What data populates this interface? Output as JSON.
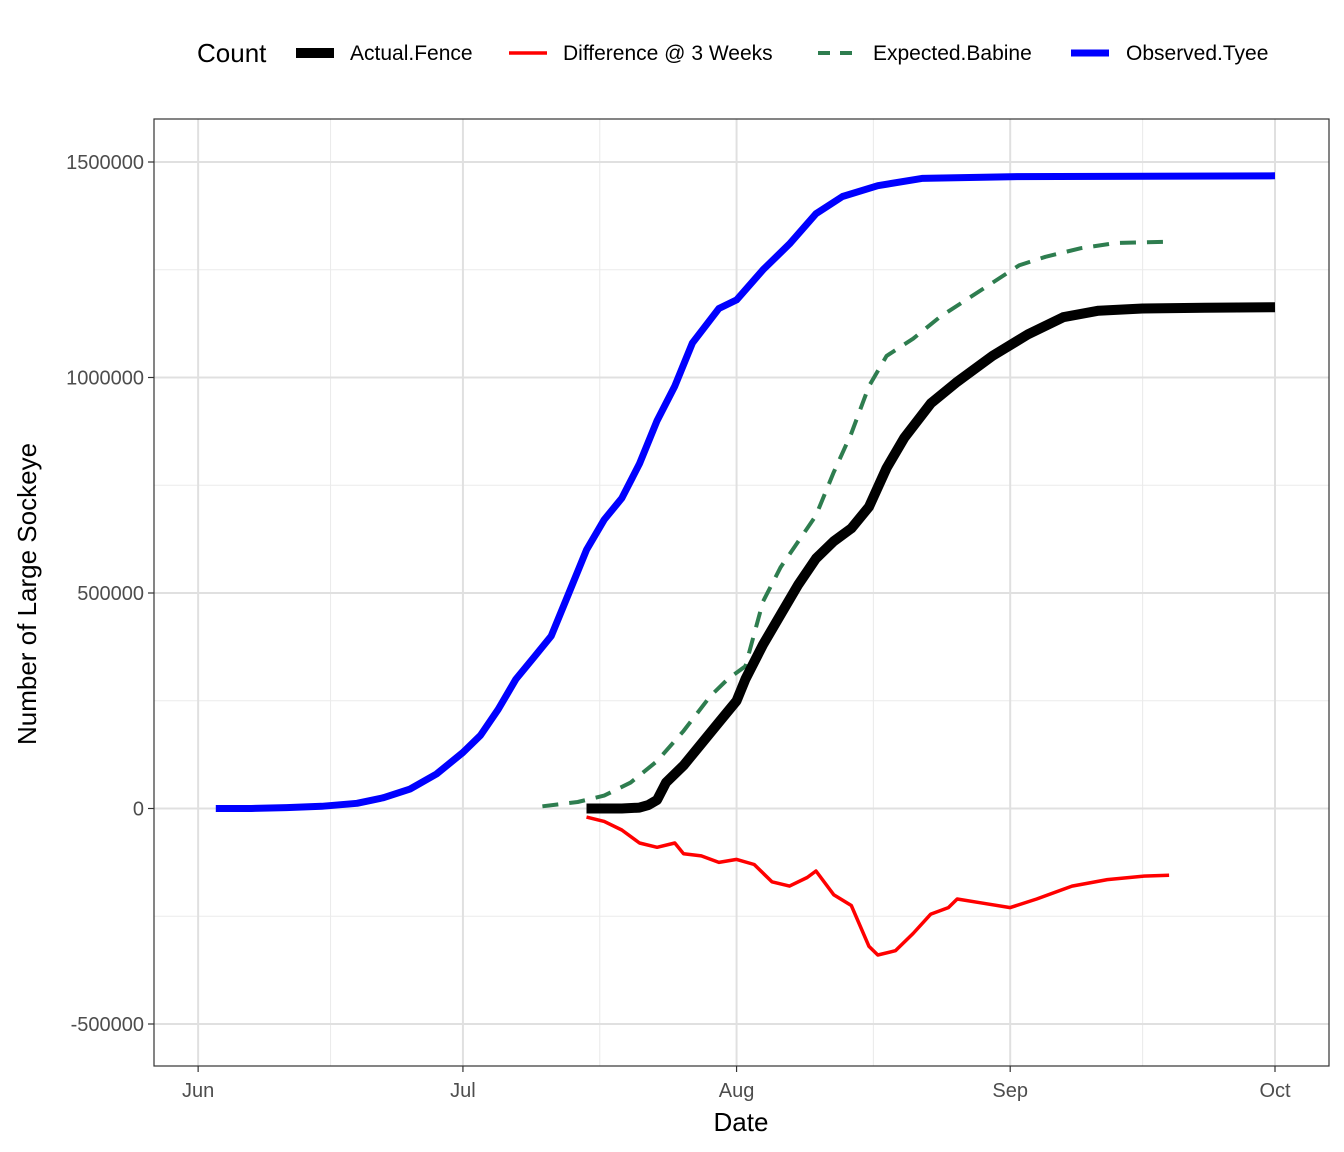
{
  "chart_data": {
    "type": "line",
    "xlabel": "Date",
    "ylabel": "Number of Large Sockeye",
    "legend_title": "Count",
    "legend_position": "top",
    "grid": true,
    "ylim": [
      -500000,
      1500000
    ],
    "y_ticks": [
      -500000,
      0,
      500000,
      1000000,
      1500000
    ],
    "y_tick_labels": [
      "-500000",
      "0",
      "500000",
      "1000000",
      "1500000"
    ],
    "x_ticks": [
      "2000-06-01",
      "2000-07-01",
      "2000-08-01",
      "2000-09-01",
      "2000-10-01"
    ],
    "x_tick_labels": [
      "Jun",
      "Jul",
      "Aug",
      "Sep",
      "Oct"
    ],
    "xlim": [
      "2000-05-27",
      "2000-10-01"
    ],
    "series": [
      {
        "name": "Actual.Fence",
        "color": "#000000",
        "style": "solid",
        "points": [
          [
            "2000-07-15",
            0
          ],
          [
            "2000-07-17",
            0
          ],
          [
            "2000-07-19",
            0
          ],
          [
            "2000-07-21",
            2000
          ],
          [
            "2000-07-22",
            8000
          ],
          [
            "2000-07-23",
            20000
          ],
          [
            "2000-07-24",
            60000
          ],
          [
            "2000-07-26",
            100000
          ],
          [
            "2000-07-28",
            150000
          ],
          [
            "2000-07-30",
            200000
          ],
          [
            "2000-08-01",
            250000
          ],
          [
            "2000-08-02",
            300000
          ],
          [
            "2000-08-04",
            380000
          ],
          [
            "2000-08-06",
            450000
          ],
          [
            "2000-08-08",
            520000
          ],
          [
            "2000-08-10",
            580000
          ],
          [
            "2000-08-12",
            620000
          ],
          [
            "2000-08-14",
            650000
          ],
          [
            "2000-08-16",
            700000
          ],
          [
            "2000-08-18",
            790000
          ],
          [
            "2000-08-20",
            860000
          ],
          [
            "2000-08-23",
            940000
          ],
          [
            "2000-08-26",
            990000
          ],
          [
            "2000-08-30",
            1050000
          ],
          [
            "2000-09-03",
            1100000
          ],
          [
            "2000-09-07",
            1140000
          ],
          [
            "2000-09-11",
            1155000
          ],
          [
            "2000-09-16",
            1160000
          ],
          [
            "2000-09-23",
            1162000
          ],
          [
            "2000-10-01",
            1163000
          ]
        ]
      },
      {
        "name": "Difference @ 3 Weeks",
        "color": "#ff0000",
        "style": "solid",
        "points": [
          [
            "2000-07-15",
            -20000
          ],
          [
            "2000-07-17",
            -30000
          ],
          [
            "2000-07-19",
            -50000
          ],
          [
            "2000-07-21",
            -80000
          ],
          [
            "2000-07-23",
            -90000
          ],
          [
            "2000-07-25",
            -80000
          ],
          [
            "2000-07-26",
            -105000
          ],
          [
            "2000-07-28",
            -110000
          ],
          [
            "2000-07-30",
            -125000
          ],
          [
            "2000-08-01",
            -118000
          ],
          [
            "2000-08-03",
            -130000
          ],
          [
            "2000-08-05",
            -170000
          ],
          [
            "2000-08-07",
            -180000
          ],
          [
            "2000-08-09",
            -160000
          ],
          [
            "2000-08-10",
            -145000
          ],
          [
            "2000-08-12",
            -200000
          ],
          [
            "2000-08-14",
            -225000
          ],
          [
            "2000-08-16",
            -320000
          ],
          [
            "2000-08-17",
            -340000
          ],
          [
            "2000-08-19",
            -330000
          ],
          [
            "2000-08-21",
            -290000
          ],
          [
            "2000-08-23",
            -245000
          ],
          [
            "2000-08-25",
            -230000
          ],
          [
            "2000-08-26",
            -210000
          ],
          [
            "2000-08-29",
            -220000
          ],
          [
            "2000-09-01",
            -230000
          ],
          [
            "2000-09-04",
            -210000
          ],
          [
            "2000-09-08",
            -180000
          ],
          [
            "2000-09-12",
            -165000
          ],
          [
            "2000-09-16",
            -157000
          ],
          [
            "2000-09-19",
            -155000
          ]
        ]
      },
      {
        "name": "Expected.Babine",
        "color": "#2e7d4f",
        "style": "dashed",
        "points": [
          [
            "2000-07-10",
            5000
          ],
          [
            "2000-07-14",
            15000
          ],
          [
            "2000-07-17",
            30000
          ],
          [
            "2000-07-20",
            60000
          ],
          [
            "2000-07-23",
            110000
          ],
          [
            "2000-07-26",
            180000
          ],
          [
            "2000-07-29",
            260000
          ],
          [
            "2000-07-31",
            300000
          ],
          [
            "2000-08-02",
            330000
          ],
          [
            "2000-08-04",
            480000
          ],
          [
            "2000-08-06",
            560000
          ],
          [
            "2000-08-08",
            620000
          ],
          [
            "2000-08-10",
            680000
          ],
          [
            "2000-08-12",
            780000
          ],
          [
            "2000-08-14",
            870000
          ],
          [
            "2000-08-16",
            980000
          ],
          [
            "2000-08-18",
            1050000
          ],
          [
            "2000-08-21",
            1090000
          ],
          [
            "2000-08-24",
            1140000
          ],
          [
            "2000-08-27",
            1180000
          ],
          [
            "2000-08-30",
            1220000
          ],
          [
            "2000-09-02",
            1260000
          ],
          [
            "2000-09-05",
            1280000
          ],
          [
            "2000-09-09",
            1300000
          ],
          [
            "2000-09-13",
            1312000
          ],
          [
            "2000-09-19",
            1315000
          ]
        ]
      },
      {
        "name": "Observed.Tyee",
        "color": "#0000ff",
        "style": "solid",
        "points": [
          [
            "2000-06-03",
            0
          ],
          [
            "2000-06-07",
            0
          ],
          [
            "2000-06-11",
            2000
          ],
          [
            "2000-06-15",
            5000
          ],
          [
            "2000-06-19",
            12000
          ],
          [
            "2000-06-22",
            25000
          ],
          [
            "2000-06-25",
            45000
          ],
          [
            "2000-06-28",
            80000
          ],
          [
            "2000-07-01",
            130000
          ],
          [
            "2000-07-03",
            170000
          ],
          [
            "2000-07-05",
            230000
          ],
          [
            "2000-07-07",
            300000
          ],
          [
            "2000-07-09",
            350000
          ],
          [
            "2000-07-11",
            400000
          ],
          [
            "2000-07-13",
            500000
          ],
          [
            "2000-07-15",
            600000
          ],
          [
            "2000-07-17",
            670000
          ],
          [
            "2000-07-19",
            720000
          ],
          [
            "2000-07-21",
            800000
          ],
          [
            "2000-07-23",
            900000
          ],
          [
            "2000-07-25",
            980000
          ],
          [
            "2000-07-27",
            1080000
          ],
          [
            "2000-07-30",
            1160000
          ],
          [
            "2000-08-01",
            1180000
          ],
          [
            "2000-08-04",
            1250000
          ],
          [
            "2000-08-07",
            1310000
          ],
          [
            "2000-08-10",
            1380000
          ],
          [
            "2000-08-13",
            1420000
          ],
          [
            "2000-08-17",
            1445000
          ],
          [
            "2000-08-22",
            1462000
          ],
          [
            "2000-09-01",
            1466000
          ],
          [
            "2000-10-01",
            1468000
          ]
        ]
      }
    ]
  }
}
